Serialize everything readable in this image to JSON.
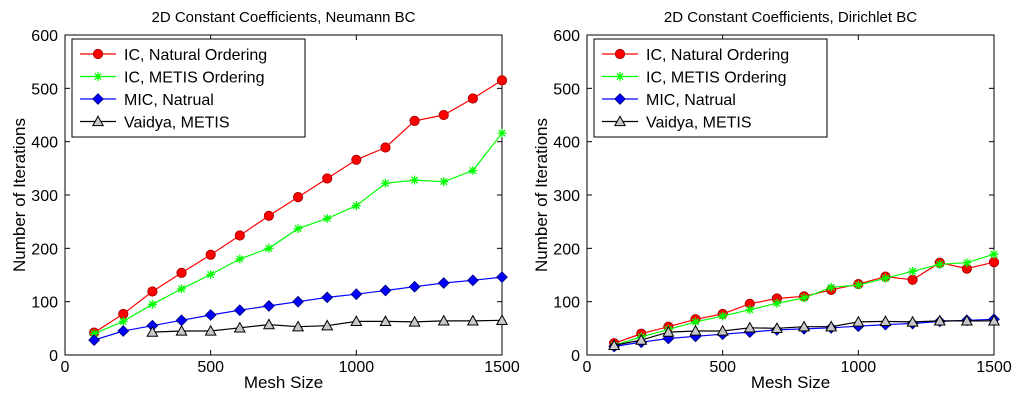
{
  "chart_data": [
    {
      "type": "line",
      "title": "2D Constant Coefficients, Neumann BC",
      "xlabel": "Mesh Size",
      "ylabel": "Number of Iterations",
      "xlim": [
        0,
        1500
      ],
      "ylim": [
        0,
        600
      ],
      "xticks": [
        "0",
        "500",
        "1000",
        "1500"
      ],
      "yticks": [
        "0",
        "100",
        "200",
        "300",
        "400",
        "500",
        "600"
      ],
      "grid": false,
      "legend_position": "top-left",
      "series": [
        {
          "name": "IC, Natural Ordering",
          "color": "#ff0000",
          "marker": "circle",
          "x": [
            100,
            200,
            300,
            400,
            500,
            600,
            700,
            800,
            900,
            1000,
            1100,
            1200,
            1300,
            1400,
            1500
          ],
          "y": [
            42,
            77,
            119,
            154,
            188,
            224,
            261,
            296,
            331,
            366,
            389,
            439,
            450,
            481,
            515
          ]
        },
        {
          "name": "IC, METIS Ordering",
          "color": "#00ff00",
          "marker": "asterisk",
          "x": [
            100,
            200,
            300,
            400,
            500,
            600,
            700,
            800,
            900,
            1000,
            1100,
            1200,
            1300,
            1400,
            1500
          ],
          "y": [
            40,
            63,
            95,
            124,
            151,
            180,
            200,
            237,
            256,
            280,
            322,
            328,
            325,
            346,
            416
          ]
        },
        {
          "name": "MIC, Natrual",
          "color": "#0000ff",
          "marker": "diamond",
          "x": [
            100,
            200,
            300,
            400,
            500,
            600,
            700,
            800,
            900,
            1000,
            1100,
            1200,
            1300,
            1400,
            1500
          ],
          "y": [
            28,
            45,
            55,
            65,
            75,
            84,
            92,
            100,
            108,
            114,
            121,
            128,
            135,
            140,
            146
          ]
        },
        {
          "name": "Vaidya, METIS",
          "color": "#000000",
          "marker": "triangle",
          "x": [
            300,
            400,
            500,
            600,
            700,
            800,
            900,
            1000,
            1100,
            1200,
            1300,
            1400,
            1500
          ],
          "y": [
            43,
            45,
            45,
            51,
            57,
            53,
            55,
            63,
            63,
            62,
            64,
            64,
            65
          ]
        }
      ]
    },
    {
      "type": "line",
      "title": "2D Constant Coefficients, Dirichlet BC",
      "xlabel": "Mesh Size",
      "ylabel": "Number of Iterations",
      "xlim": [
        0,
        1500
      ],
      "ylim": [
        0,
        600
      ],
      "xticks": [
        "0",
        "500",
        "1000",
        "1500"
      ],
      "yticks": [
        "0",
        "100",
        "200",
        "300",
        "400",
        "500",
        "600"
      ],
      "grid": false,
      "legend_position": "top-left",
      "series": [
        {
          "name": "IC, Natural Ordering",
          "color": "#ff0000",
          "marker": "circle",
          "x": [
            100,
            200,
            300,
            400,
            500,
            600,
            700,
            800,
            900,
            1000,
            1100,
            1200,
            1300,
            1400,
            1500
          ],
          "y": [
            22,
            40,
            53,
            67,
            77,
            96,
            106,
            110,
            122,
            133,
            147,
            141,
            173,
            162,
            174
          ]
        },
        {
          "name": "IC, METIS Ordering",
          "color": "#00ff00",
          "marker": "asterisk",
          "x": [
            100,
            200,
            300,
            400,
            500,
            600,
            700,
            800,
            900,
            1000,
            1100,
            1200,
            1300,
            1400,
            1500
          ],
          "y": [
            18,
            34,
            48,
            62,
            73,
            85,
            97,
            107,
            127,
            131,
            144,
            157,
            170,
            173,
            189
          ]
        },
        {
          "name": "MIC, Natrual",
          "color": "#0000ff",
          "marker": "diamond",
          "x": [
            100,
            200,
            300,
            400,
            500,
            600,
            700,
            800,
            900,
            1000,
            1100,
            1200,
            1300,
            1400,
            1500
          ],
          "y": [
            16,
            24,
            31,
            35,
            39,
            43,
            47,
            49,
            51,
            54,
            57,
            59,
            63,
            65,
            67
          ]
        },
        {
          "name": "Vaidya, METIS",
          "color": "#000000",
          "marker": "triangle",
          "x": [
            100,
            200,
            300,
            400,
            500,
            600,
            700,
            800,
            900,
            1000,
            1100,
            1200,
            1300,
            1400,
            1500
          ],
          "y": [
            18,
            28,
            43,
            45,
            45,
            51,
            50,
            53,
            53,
            62,
            63,
            62,
            64,
            64,
            64
          ]
        }
      ]
    }
  ]
}
